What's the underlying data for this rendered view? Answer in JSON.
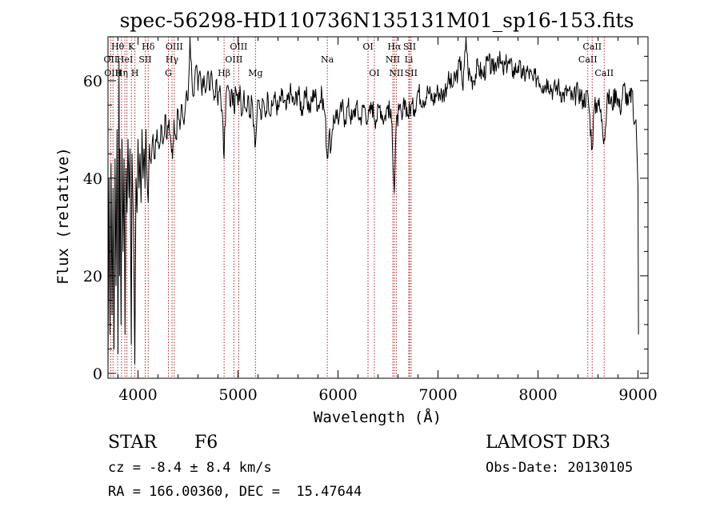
{
  "chart_data": {
    "type": "line",
    "title": "spec-56298-HD110736N135131M01_sp16-153.fits",
    "xlabel": "Wavelength (Å)",
    "ylabel": "Flux (relative)",
    "xlim": [
      3700,
      9100
    ],
    "ylim": [
      -1,
      69
    ],
    "xticks": [
      4000,
      5000,
      6000,
      7000,
      8000,
      9000
    ],
    "yticks": [
      0,
      20,
      40,
      60
    ],
    "grid": false,
    "series": [
      {
        "color": "#000000",
        "points": [
          [
            3700,
            1
          ],
          [
            3710,
            40
          ],
          [
            3720,
            8
          ],
          [
            3730,
            43
          ],
          [
            3740,
            12
          ],
          [
            3750,
            38
          ],
          [
            3760,
            5
          ],
          [
            3770,
            44
          ],
          [
            3780,
            18
          ],
          [
            3790,
            50
          ],
          [
            3800,
            4
          ],
          [
            3810,
            64
          ],
          [
            3815,
            20
          ],
          [
            3820,
            46
          ],
          [
            3830,
            10
          ],
          [
            3840,
            48
          ],
          [
            3850,
            25
          ],
          [
            3860,
            44
          ],
          [
            3870,
            8
          ],
          [
            3880,
            42
          ],
          [
            3890,
            33
          ],
          [
            3900,
            48
          ],
          [
            3910,
            36
          ],
          [
            3920,
            46
          ],
          [
            3933,
            6
          ],
          [
            3940,
            45
          ],
          [
            3955,
            30
          ],
          [
            3968,
            2
          ],
          [
            3980,
            40
          ],
          [
            3990,
            33
          ],
          [
            4000,
            48
          ],
          [
            4010,
            38
          ],
          [
            4020,
            45
          ],
          [
            4030,
            35
          ],
          [
            4040,
            50
          ],
          [
            4050,
            40
          ],
          [
            4060,
            46
          ],
          [
            4070,
            38
          ],
          [
            4080,
            50
          ],
          [
            4090,
            40
          ],
          [
            4102,
            35
          ],
          [
            4115,
            47
          ],
          [
            4130,
            43
          ],
          [
            4150,
            49
          ],
          [
            4170,
            44
          ],
          [
            4190,
            50
          ],
          [
            4210,
            46
          ],
          [
            4230,
            51
          ],
          [
            4250,
            47
          ],
          [
            4270,
            53
          ],
          [
            4290,
            48
          ],
          [
            4310,
            52
          ],
          [
            4330,
            47
          ],
          [
            4345,
            44
          ],
          [
            4360,
            52
          ],
          [
            4380,
            48
          ],
          [
            4400,
            54
          ],
          [
            4420,
            50
          ],
          [
            4440,
            55
          ],
          [
            4460,
            51
          ],
          [
            4480,
            57
          ],
          [
            4500,
            56
          ],
          [
            4520,
            69
          ],
          [
            4540,
            60
          ],
          [
            4560,
            57
          ],
          [
            4580,
            63
          ],
          [
            4600,
            58
          ],
          [
            4620,
            62
          ],
          [
            4640,
            57
          ],
          [
            4660,
            61
          ],
          [
            4680,
            58
          ],
          [
            4700,
            62
          ],
          [
            4720,
            58
          ],
          [
            4740,
            61
          ],
          [
            4760,
            56
          ],
          [
            4780,
            60
          ],
          [
            4800,
            55
          ],
          [
            4820,
            59
          ],
          [
            4840,
            54
          ],
          [
            4861,
            44
          ],
          [
            4880,
            57
          ],
          [
            4900,
            59
          ],
          [
            4920,
            55
          ],
          [
            4940,
            58
          ],
          [
            4960,
            54
          ],
          [
            4980,
            58
          ],
          [
            5000,
            55
          ],
          [
            5020,
            59
          ],
          [
            5040,
            53
          ],
          [
            5060,
            58
          ],
          [
            5080,
            54
          ],
          [
            5100,
            57
          ],
          [
            5120,
            53
          ],
          [
            5140,
            56
          ],
          [
            5160,
            51
          ],
          [
            5175,
            47
          ],
          [
            5190,
            53
          ],
          [
            5210,
            56
          ],
          [
            5230,
            52
          ],
          [
            5250,
            56
          ],
          [
            5270,
            53
          ],
          [
            5300,
            57
          ],
          [
            5330,
            53
          ],
          [
            5360,
            57
          ],
          [
            5400,
            54
          ],
          [
            5440,
            57
          ],
          [
            5480,
            54
          ],
          [
            5520,
            58
          ],
          [
            5560,
            55
          ],
          [
            5600,
            58
          ],
          [
            5640,
            54
          ],
          [
            5680,
            57
          ],
          [
            5720,
            54
          ],
          [
            5760,
            58
          ],
          [
            5800,
            55
          ],
          [
            5840,
            57
          ],
          [
            5870,
            53
          ],
          [
            5893,
            44
          ],
          [
            5910,
            49
          ],
          [
            5930,
            46
          ],
          [
            5950,
            50
          ],
          [
            5980,
            54
          ],
          [
            6010,
            52
          ],
          [
            6040,
            55
          ],
          [
            6070,
            52
          ],
          [
            6100,
            55
          ],
          [
            6140,
            52
          ],
          [
            6180,
            55
          ],
          [
            6220,
            52
          ],
          [
            6260,
            55
          ],
          [
            6300,
            52
          ],
          [
            6340,
            55
          ],
          [
            6380,
            52
          ],
          [
            6420,
            55
          ],
          [
            6460,
            52
          ],
          [
            6500,
            55
          ],
          [
            6540,
            51
          ],
          [
            6563,
            37
          ],
          [
            6580,
            50
          ],
          [
            6610,
            54
          ],
          [
            6640,
            52
          ],
          [
            6670,
            56
          ],
          [
            6700,
            53
          ],
          [
            6730,
            55
          ],
          [
            6760,
            54
          ],
          [
            6800,
            58
          ],
          [
            6850,
            56
          ],
          [
            6900,
            58
          ],
          [
            6950,
            56
          ],
          [
            7000,
            58
          ],
          [
            7050,
            57
          ],
          [
            7100,
            60
          ],
          [
            7150,
            59
          ],
          [
            7200,
            62
          ],
          [
            7230,
            64
          ],
          [
            7250,
            58
          ],
          [
            7280,
            69
          ],
          [
            7300,
            62
          ],
          [
            7350,
            60
          ],
          [
            7400,
            63
          ],
          [
            7450,
            61
          ],
          [
            7500,
            64
          ],
          [
            7550,
            62
          ],
          [
            7600,
            65
          ],
          [
            7650,
            62
          ],
          [
            7700,
            64
          ],
          [
            7750,
            62
          ],
          [
            7800,
            63
          ],
          [
            7850,
            61
          ],
          [
            7900,
            62
          ],
          [
            7950,
            60
          ],
          [
            8000,
            61
          ],
          [
            8050,
            59
          ],
          [
            8100,
            60
          ],
          [
            8150,
            58
          ],
          [
            8200,
            59
          ],
          [
            8250,
            57
          ],
          [
            8300,
            58
          ],
          [
            8350,
            56
          ],
          [
            8400,
            58
          ],
          [
            8450,
            56
          ],
          [
            8500,
            57
          ],
          [
            8542,
            46
          ],
          [
            8560,
            54
          ],
          [
            8600,
            56
          ],
          [
            8640,
            52
          ],
          [
            8662,
            48
          ],
          [
            8700,
            57
          ],
          [
            8740,
            55
          ],
          [
            8780,
            58
          ],
          [
            8820,
            54
          ],
          [
            8860,
            59
          ],
          [
            8900,
            55
          ],
          [
            8940,
            58
          ],
          [
            8960,
            51
          ],
          [
            8980,
            52
          ],
          [
            8990,
            45
          ],
          [
            9000,
            38
          ],
          [
            9005,
            8
          ]
        ]
      }
    ],
    "lines": [
      {
        "wavelength": 3727,
        "labels": [
          {
            "text": "OII",
            "row": 2
          }
        ]
      },
      {
        "wavelength": 3750,
        "labels": [
          {
            "text": "OIII",
            "row": 3
          }
        ]
      },
      {
        "wavelength": 3797,
        "labels": [
          {
            "text": "Hθ",
            "row": 1
          }
        ]
      },
      {
        "wavelength": 3835,
        "labels": [
          {
            "text": "Hη",
            "row": 3
          }
        ]
      },
      {
        "wavelength": 3869,
        "labels": [
          {
            "text": "HeI",
            "row": 2
          }
        ]
      },
      {
        "wavelength": 3889,
        "labels": []
      },
      {
        "wavelength": 3934,
        "labels": [
          {
            "text": "K",
            "row": 1
          }
        ]
      },
      {
        "wavelength": 3969,
        "labels": [
          {
            "text": "H",
            "row": 3
          }
        ]
      },
      {
        "wavelength": 4072,
        "labels": [
          {
            "text": "SII",
            "row": 2
          }
        ]
      },
      {
        "wavelength": 4102,
        "labels": [
          {
            "text": "Hδ",
            "row": 1
          }
        ]
      },
      {
        "wavelength": 4304,
        "labels": [
          {
            "text": "G",
            "row": 3
          }
        ]
      },
      {
        "wavelength": 4340,
        "labels": [
          {
            "text": "Hγ",
            "row": 2
          }
        ]
      },
      {
        "wavelength": 4363,
        "labels": [
          {
            "text": "OIII",
            "row": 1
          }
        ]
      },
      {
        "wavelength": 4861,
        "labels": [
          {
            "text": "Hβ",
            "row": 3
          }
        ]
      },
      {
        "wavelength": 4959,
        "labels": [
          {
            "text": "OIII",
            "row": 2
          }
        ]
      },
      {
        "wavelength": 5007,
        "labels": [
          {
            "text": "OIII",
            "row": 1
          }
        ]
      },
      {
        "wavelength": 5175,
        "labels": [
          {
            "text": "Mg",
            "row": 3
          }
        ]
      },
      {
        "wavelength": 5893,
        "labels": [
          {
            "text": "Na",
            "row": 2
          }
        ]
      },
      {
        "wavelength": 6300,
        "labels": [
          {
            "text": "OI",
            "row": 1
          }
        ]
      },
      {
        "wavelength": 6363,
        "labels": [
          {
            "text": "OI",
            "row": 3
          }
        ]
      },
      {
        "wavelength": 6548,
        "labels": [
          {
            "text": "NII",
            "row": 2
          }
        ]
      },
      {
        "wavelength": 6563,
        "labels": [
          {
            "text": "Hα",
            "row": 1
          }
        ]
      },
      {
        "wavelength": 6583,
        "labels": [
          {
            "text": "NII",
            "row": 3
          }
        ]
      },
      {
        "wavelength": 6708,
        "labels": [
          {
            "text": "Li",
            "row": 2
          }
        ]
      },
      {
        "wavelength": 6716,
        "labels": [
          {
            "text": "SII",
            "row": 1
          }
        ]
      },
      {
        "wavelength": 6731,
        "labels": [
          {
            "text": "SII",
            "row": 3
          }
        ]
      },
      {
        "wavelength": 8498,
        "labels": [
          {
            "text": "CaII",
            "row": 2
          }
        ]
      },
      {
        "wavelength": 8542,
        "labels": [
          {
            "text": "CaII",
            "row": 1
          }
        ]
      },
      {
        "wavelength": 8662,
        "labels": [
          {
            "text": "CaII",
            "row": 3
          }
        ]
      }
    ]
  },
  "info": {
    "class": "STAR",
    "subclass": "F6",
    "cz": "cz = -8.4 ± 8.4 km/s",
    "coords": "RA = 166.00360, DEC =  15.47644",
    "survey": "LAMOST DR3",
    "obs_date": "Obs-Date: 20130105"
  },
  "colors": {
    "spectrum": "#000000",
    "line_markers": "#b22222",
    "axes": "#000000"
  }
}
